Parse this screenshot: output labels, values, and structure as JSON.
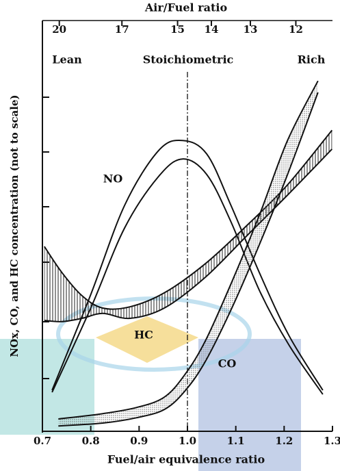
{
  "chart_data": {
    "type": "band",
    "title": "Air/Fuel ratio",
    "x_label": "Fuel/air equivalence ratio",
    "y_label": "NOx, CO, and HC concentration (not to scale)",
    "annotations": [
      "Lean",
      "Stoichiometric",
      "Rich",
      "NO",
      "HC",
      "CO"
    ],
    "xlim": [
      0.7,
      1.3
    ],
    "xticks": [
      0.7,
      0.8,
      0.9,
      {
        "value": 1,
        "label": "1.0"
      },
      1.1,
      1.2,
      1.3
    ],
    "x2lim": [
      21,
      11.3
    ],
    "x2scale": "reciprocal",
    "x2ticks": [
      20,
      17,
      15,
      14,
      13,
      12
    ],
    "ylim": [
      0,
      10
    ],
    "vline": 1,
    "bands": [
      {
        "color": "#111",
        "fill": "none",
        "x": [
          0.72,
          0.8,
          0.87,
          0.94,
          0.99,
          1.04,
          1.09,
          1.15,
          1.21,
          1.28
        ],
        "upper": [
          1.0,
          3.33,
          5.5,
          6.83,
          7.08,
          6.75,
          5.5,
          3.83,
          2.33,
          1.0
        ],
        "lower": [
          0.95,
          3.0,
          4.95,
          6.2,
          6.63,
          6.25,
          5.1,
          3.4,
          2.1,
          0.9
        ]
      },
      {
        "color": "#111",
        "fill": "hatch",
        "x": [
          0.704,
          0.74,
          0.782,
          0.825,
          0.881,
          0.952,
          1.037,
          1.122,
          1.207,
          1.299
        ],
        "upper": [
          4.5,
          3.87,
          3.3,
          3.0,
          3.03,
          3.37,
          4.08,
          5.0,
          6.0,
          7.33
        ],
        "lower": [
          2.7,
          2.67,
          2.75,
          2.87,
          2.75,
          3.0,
          3.75,
          4.75,
          5.75,
          6.87
        ]
      },
      {
        "color": "#111",
        "fill": "stipple",
        "x": [
          0.733,
          0.825,
          0.895,
          0.952,
          0.994,
          1.037,
          1.093,
          1.15,
          1.207,
          1.27
        ],
        "upper": [
          0.3,
          0.43,
          0.58,
          0.83,
          1.37,
          2.2,
          3.67,
          5.3,
          7.08,
          8.53
        ],
        "lower": [
          0.13,
          0.2,
          0.33,
          0.53,
          0.97,
          1.7,
          3.03,
          4.58,
          6.25,
          8.25
        ]
      }
    ]
  }
}
